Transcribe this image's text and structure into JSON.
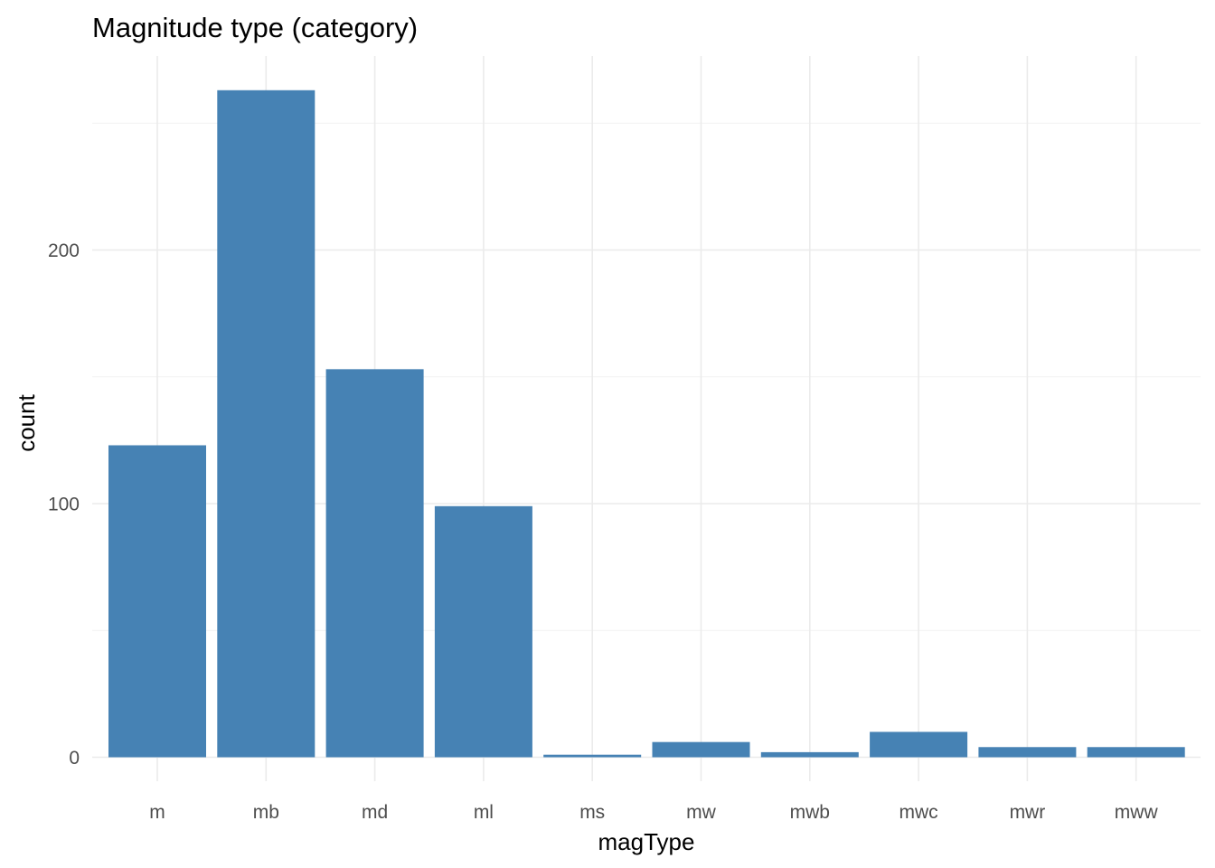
{
  "chart_data": {
    "type": "bar",
    "title": "Magnitude type (category)",
    "xlabel": "magType",
    "ylabel": "count",
    "categories": [
      "m",
      "mb",
      "md",
      "ml",
      "ms",
      "mw",
      "mwb",
      "mwc",
      "mwr",
      "mww"
    ],
    "values": [
      123,
      263,
      153,
      99,
      1,
      6,
      2,
      10,
      4,
      4
    ],
    "ylim": [
      0,
      275
    ],
    "yticks": [
      0,
      100,
      200
    ],
    "y_minor_ticks": [
      50,
      150,
      250
    ],
    "bar_color": "#4682b4",
    "grid": true,
    "legend": "none"
  }
}
